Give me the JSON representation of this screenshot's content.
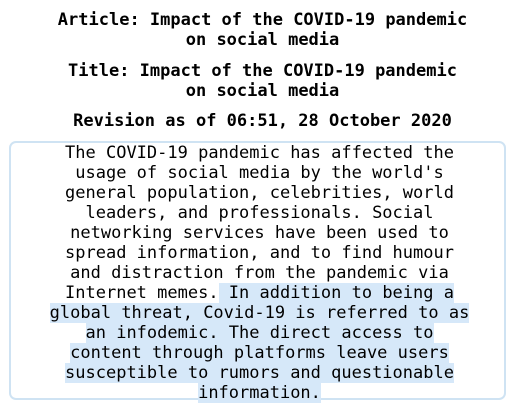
{
  "article_heading": "Article: Impact of the COVID-19 pandemic on social media",
  "article_heading_lines": [
    "Article: Impact of the COVID-19 pandemic",
    "on social media"
  ],
  "title_heading_lines": [
    "Title: Impact of the COVID-19 pandemic",
    "on social media"
  ],
  "revision": "Revision as of 06:51, 28 October 2020",
  "selection_color": "#d6e8f9",
  "border_color": "#cfe3f3",
  "body_lines": [
    {
      "plain": "The COVID-19 pandemic has affected the",
      "highlighted": ""
    },
    {
      "plain": "usage of social media by the world's",
      "highlighted": ""
    },
    {
      "plain": "general population, celebrities, world",
      "highlighted": ""
    },
    {
      "plain": "leaders, and professionals. Social",
      "highlighted": ""
    },
    {
      "plain": "networking services have been used to",
      "highlighted": ""
    },
    {
      "plain": "spread information, and to find humour",
      "highlighted": ""
    },
    {
      "plain": "and distraction from the pandemic via",
      "highlighted": ""
    },
    {
      "plain": "Internet memes.",
      "highlighted": " In addition to being a"
    },
    {
      "plain": "",
      "highlighted": "global threat, Covid-19 is referred to as"
    },
    {
      "plain": "",
      "highlighted": "an infodemic. The direct access to"
    },
    {
      "plain": "",
      "highlighted": "content through platforms leave users"
    },
    {
      "plain": "",
      "highlighted": "susceptible to rumors and questionable"
    },
    {
      "plain": "",
      "highlighted": "information."
    }
  ]
}
